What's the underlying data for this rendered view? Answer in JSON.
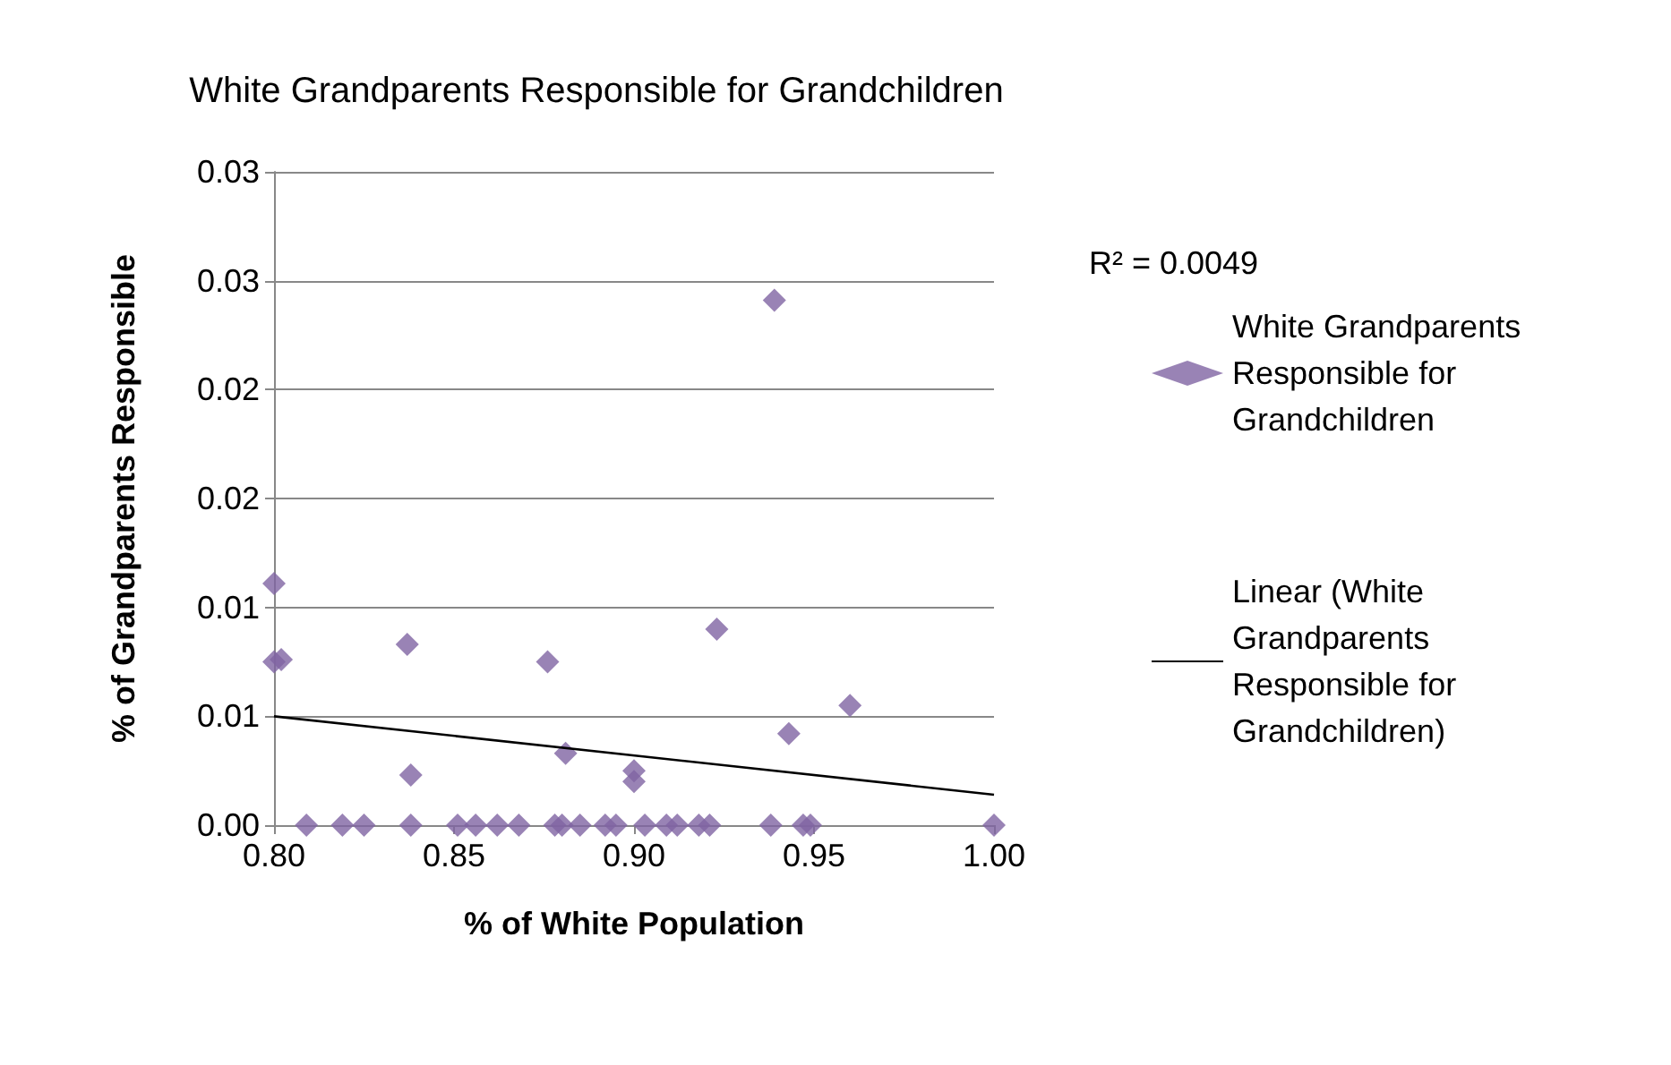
{
  "chart_data": {
    "type": "scatter",
    "title": "White Grandparents Responsible for Grandchildren",
    "xlabel": "% of White Population",
    "ylabel": "% of Grandparents Responsible",
    "xlim": [
      0.8,
      1.0
    ],
    "xticks": [
      {
        "value": 0.8,
        "label": "0.80"
      },
      {
        "value": 0.85,
        "label": "0.85"
      },
      {
        "value": 0.9,
        "label": "0.90"
      },
      {
        "value": 0.95,
        "label": "0.95"
      },
      {
        "value": 1.0,
        "label": "1.00"
      }
    ],
    "ylim": [
      0,
      0.03
    ],
    "yticks": [
      {
        "value": 0,
        "label": "0.00"
      },
      {
        "value": 0.005,
        "label": "0.01"
      },
      {
        "value": 0.01,
        "label": "0.01"
      },
      {
        "value": 0.015,
        "label": "0.02"
      },
      {
        "value": 0.02,
        "label": "0.02"
      },
      {
        "value": 0.025,
        "label": "0.03"
      },
      {
        "value": 0.03,
        "label": "0.03"
      }
    ],
    "grid": "y",
    "legend": "right",
    "marker": "diamond",
    "annotations": [
      "R² = 0.0049"
    ],
    "series": [
      {
        "name": "White Grandparents Responsible for Grandchildren",
        "color": "#8064a2",
        "x": [
          0.8,
          0.8,
          0.802,
          0.837,
          0.838,
          0.876,
          0.881,
          0.9,
          0.9,
          0.923,
          0.939,
          0.943,
          0.96,
          0.809,
          0.819,
          0.825,
          0.838,
          0.851,
          0.856,
          0.862,
          0.868,
          0.878,
          0.88,
          0.885,
          0.892,
          0.895,
          0.903,
          0.909,
          0.912,
          0.918,
          0.921,
          0.938,
          0.947,
          0.949,
          1.0
        ],
        "values": [
          0.0111,
          0.0075,
          0.0076,
          0.0083,
          0.0023,
          0.0075,
          0.0033,
          0.0025,
          0.002,
          0.009,
          0.0241,
          0.0042,
          0.0055,
          0,
          0,
          0,
          0,
          0,
          0,
          0,
          0,
          0,
          0,
          0,
          0,
          0,
          0,
          0,
          0,
          0,
          0,
          0,
          0,
          0,
          0
        ]
      },
      {
        "name": "Linear (White Grandparents Responsible for Grandchildren)",
        "type": "line",
        "color": "#000000",
        "marker": "none",
        "line_style": "solid",
        "x": [
          0.8,
          1.0
        ],
        "values": [
          0.005,
          0.0014
        ]
      }
    ]
  }
}
